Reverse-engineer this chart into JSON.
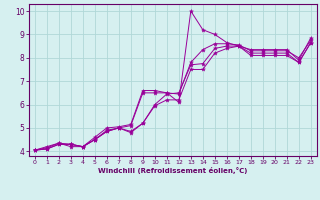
{
  "xlabel": "Windchill (Refroidissement éolien,°C)",
  "bg_color": "#d6f0f0",
  "grid_color": "#b0d8d8",
  "line_color": "#990099",
  "spine_color": "#660066",
  "xlim": [
    -0.5,
    23.5
  ],
  "ylim": [
    3.8,
    10.3
  ],
  "xticks": [
    0,
    1,
    2,
    3,
    4,
    5,
    6,
    7,
    8,
    9,
    10,
    11,
    12,
    13,
    14,
    15,
    16,
    17,
    18,
    19,
    20,
    21,
    22,
    23
  ],
  "yticks": [
    4,
    5,
    6,
    7,
    8,
    9,
    10
  ],
  "series": [
    {
      "x": [
        0,
        1,
        2,
        3,
        4,
        5,
        6,
        7,
        8,
        9,
        10,
        11,
        12,
        13,
        14,
        15,
        16,
        17,
        18,
        19,
        20,
        21,
        22,
        23
      ],
      "y": [
        4.05,
        4.2,
        4.35,
        4.2,
        4.2,
        4.6,
        5.0,
        5.05,
        5.15,
        6.6,
        6.6,
        6.5,
        6.1,
        10.0,
        9.2,
        9.0,
        8.65,
        8.5,
        8.35,
        8.35,
        8.35,
        8.35,
        7.9,
        8.85
      ]
    },
    {
      "x": [
        0,
        1,
        2,
        3,
        4,
        5,
        6,
        7,
        8,
        9,
        10,
        11,
        12,
        13,
        14,
        15,
        16,
        17,
        18,
        19,
        20,
        21,
        22,
        23
      ],
      "y": [
        4.05,
        4.15,
        4.35,
        4.3,
        4.2,
        4.5,
        4.9,
        5.0,
        5.1,
        6.5,
        6.5,
        6.5,
        6.45,
        7.8,
        8.35,
        8.6,
        8.6,
        8.55,
        8.3,
        8.3,
        8.3,
        8.3,
        8.0,
        8.75
      ]
    },
    {
      "x": [
        0,
        1,
        2,
        3,
        4,
        5,
        6,
        7,
        8,
        9,
        10,
        11,
        12,
        13,
        14,
        15,
        16,
        17,
        18,
        19,
        20,
        21,
        22,
        23
      ],
      "y": [
        4.05,
        4.1,
        4.3,
        4.3,
        4.2,
        4.5,
        4.85,
        5.0,
        4.85,
        5.2,
        6.0,
        6.45,
        6.5,
        7.7,
        7.75,
        8.4,
        8.5,
        8.5,
        8.2,
        8.2,
        8.2,
        8.2,
        7.8,
        8.65
      ]
    },
    {
      "x": [
        0,
        1,
        2,
        3,
        4,
        5,
        6,
        7,
        8,
        9,
        10,
        11,
        12,
        13,
        14,
        15,
        16,
        17,
        18,
        19,
        20,
        21,
        22,
        23
      ],
      "y": [
        4.05,
        4.1,
        4.3,
        4.3,
        4.2,
        4.5,
        4.85,
        5.0,
        4.8,
        5.2,
        5.95,
        6.2,
        6.2,
        7.5,
        7.5,
        8.2,
        8.4,
        8.5,
        8.1,
        8.1,
        8.1,
        8.1,
        7.8,
        8.65
      ]
    }
  ]
}
